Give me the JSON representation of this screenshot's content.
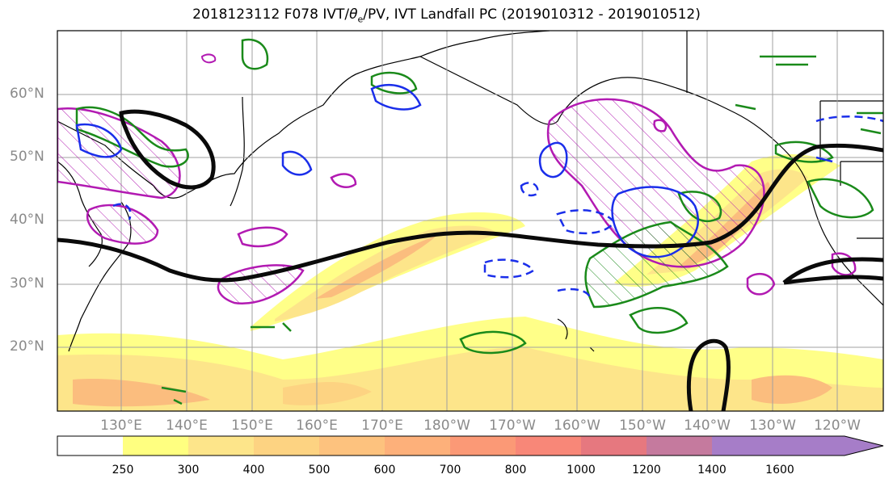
{
  "title": {
    "prefix": "2018123112 F078 IVT/",
    "theta_symbol": "θ",
    "theta_subscript": "e",
    "suffix": "/PV, IVT Landfall PC (2019010312 - 2019010512)"
  },
  "map": {
    "lat_labels": [
      "60°N",
      "50°N",
      "40°N",
      "30°N",
      "20°N"
    ],
    "lon_labels": [
      "130°E",
      "140°E",
      "150°E",
      "160°E",
      "170°E",
      "180°W",
      "170°W",
      "160°W",
      "150°W",
      "140°W",
      "130°W",
      "120°W"
    ],
    "grid": true,
    "colors": {
      "ivt_shading": "#f7a35a",
      "pv_contour": "#0a0a0a",
      "theta_e_positive": "#1a8a1a",
      "theta_e_negative": "#1a2eea",
      "landfall_pc": "#b21ab2",
      "coastline": "#000000"
    }
  },
  "colorbar": {
    "ticks": [
      "250",
      "300",
      "400",
      "500",
      "600",
      "700",
      "800",
      "1000",
      "1200",
      "1400",
      "1600"
    ],
    "colors": [
      "#ffffff",
      "#ffff80",
      "#fde58a",
      "#fdd382",
      "#fdc27e",
      "#fdb07a",
      "#fb9976",
      "#f88778",
      "#e6787f",
      "#c57a9e",
      "#a67dc8"
    ]
  }
}
